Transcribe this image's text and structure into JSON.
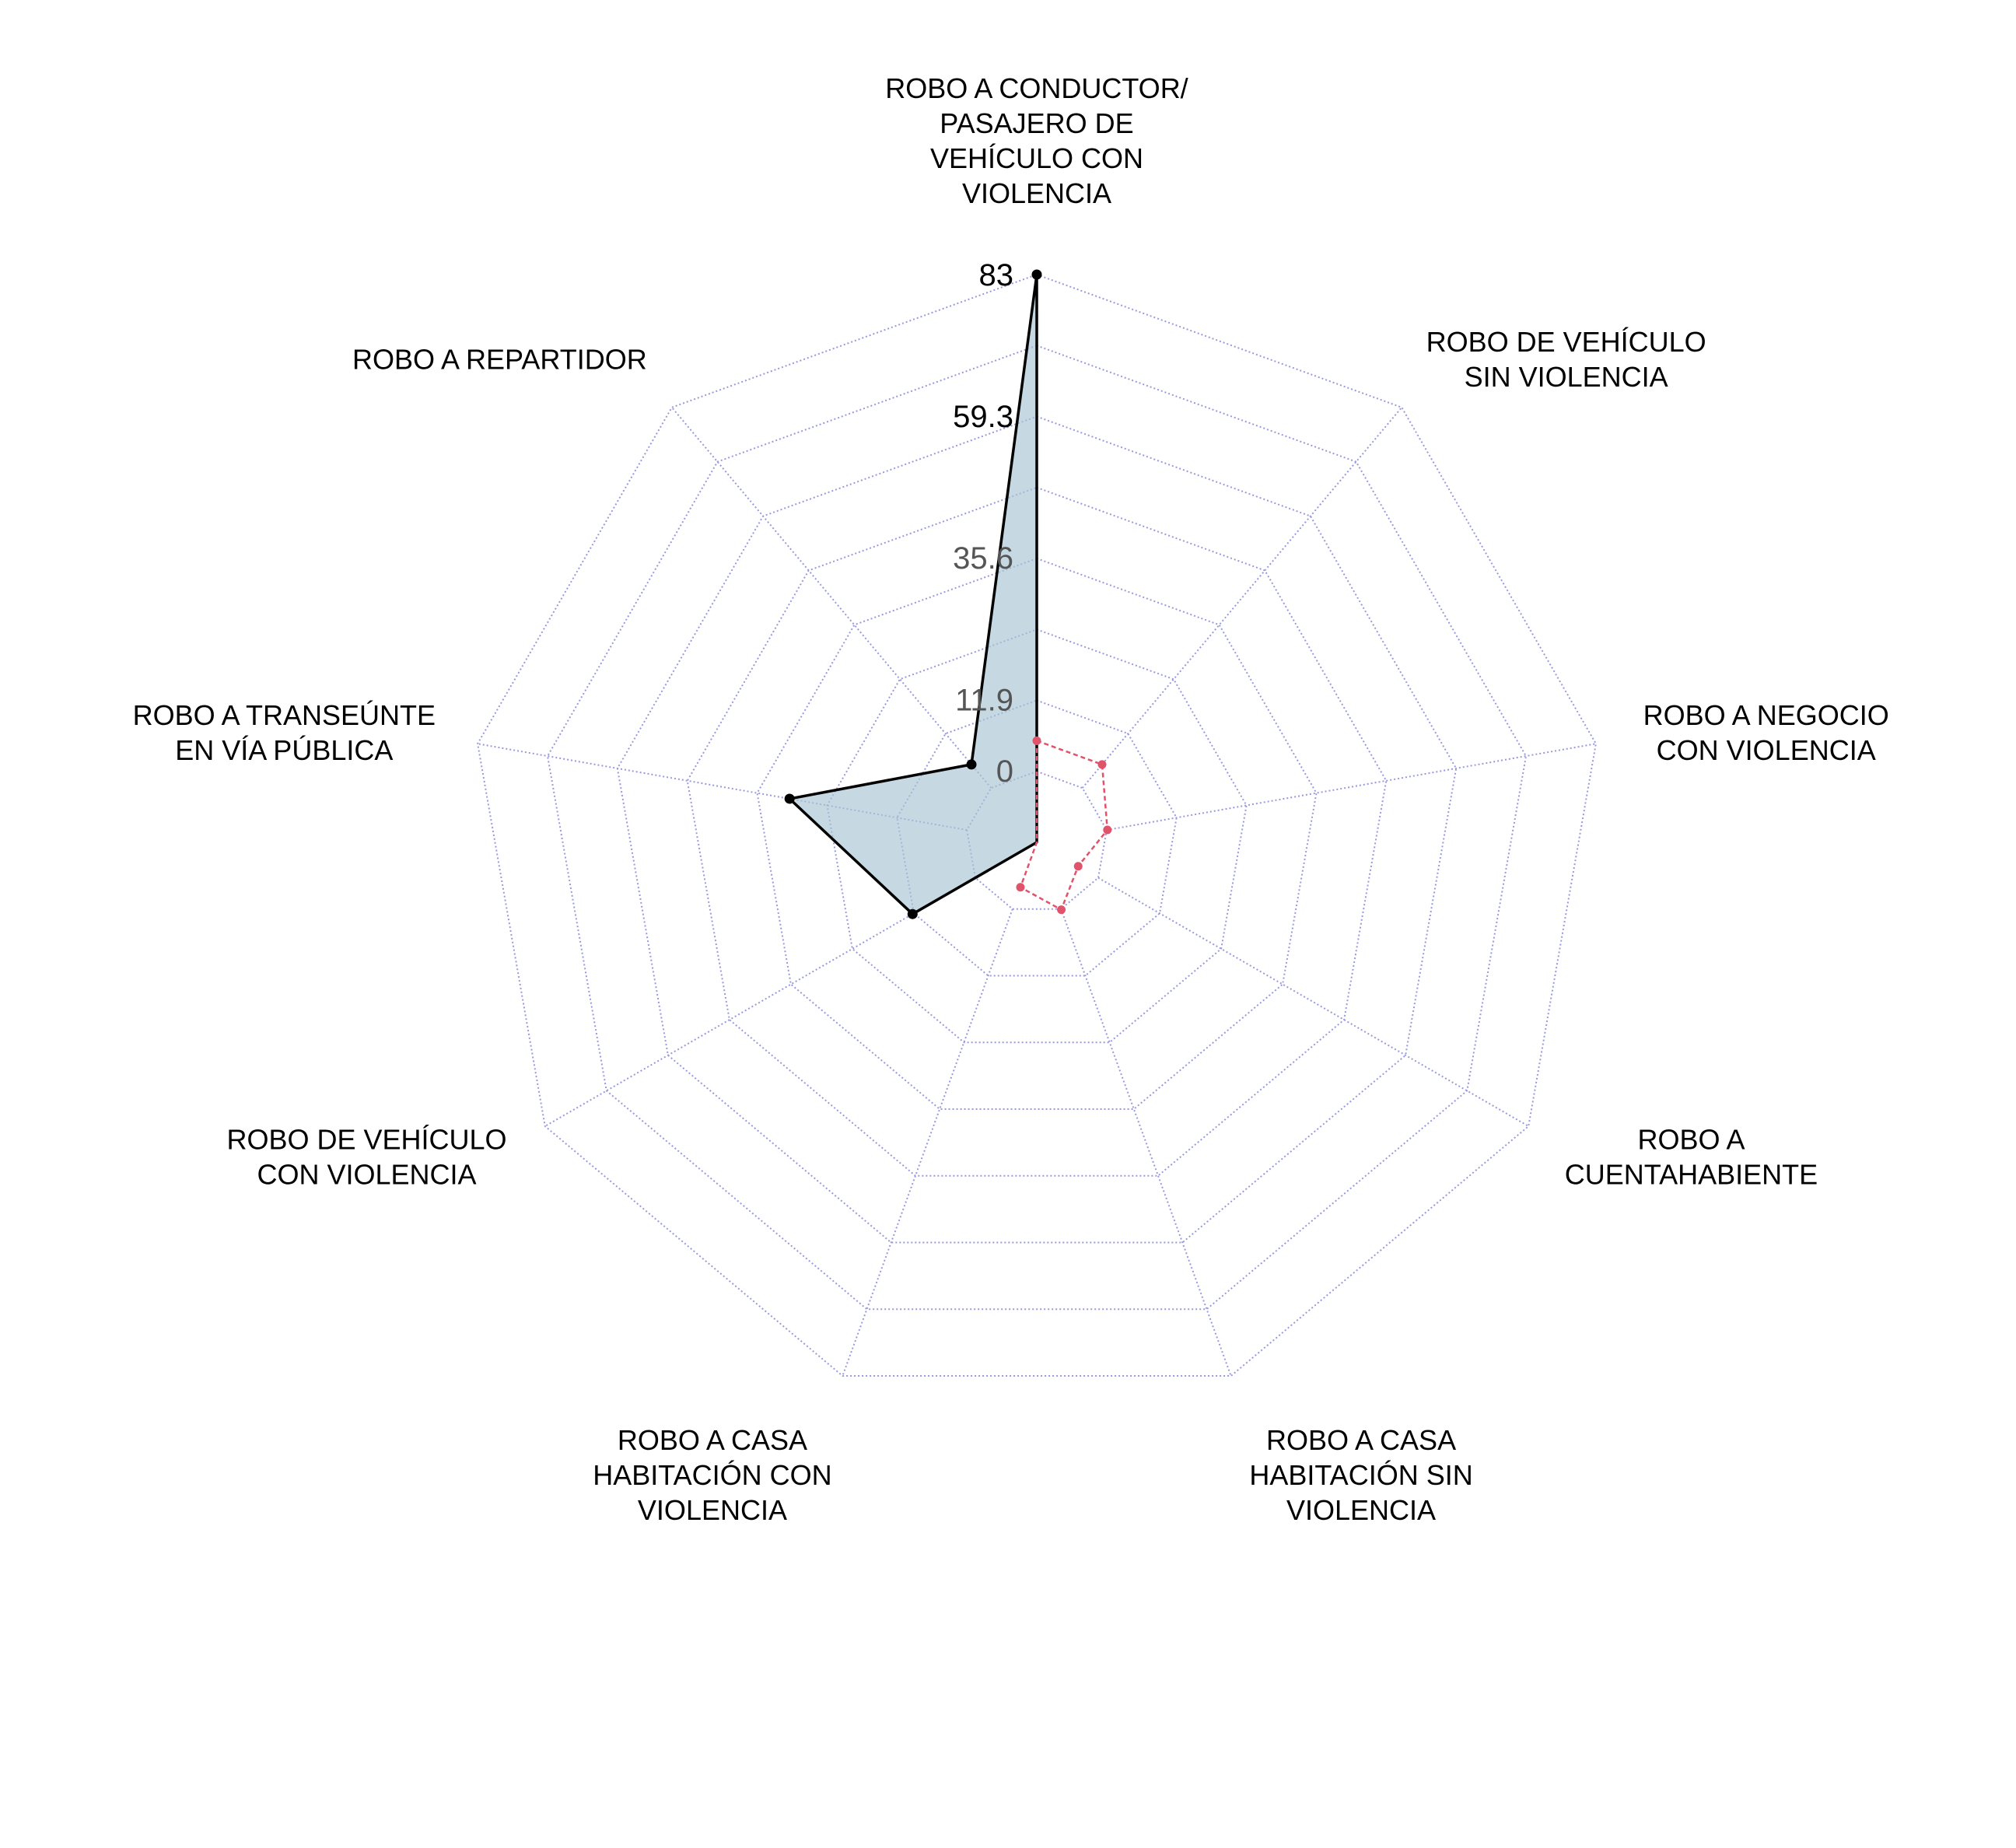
{
  "chart_data": {
    "type": "radar",
    "title": "",
    "axes": [
      "ROBO A CONDUCTOR/\nPASAJERO DE\nVEHÍCULO CON\nVIOLENCIA",
      "ROBO DE VEHÍCULO\nSIN VIOLENCIA",
      "ROBO A NEGOCIO\nCON VIOLENCIA",
      "ROBO A\nCUENTAHABIENTE",
      "ROBO A CASA\nHABITACIÓN SIN\nVIOLENCIA",
      "ROBO A CASA\nHABITACIÓN CON\nVIOLENCIA",
      "ROBO DE VEHÍCULO\nCON VIOLENCIA",
      "ROBO A TRANSEÚNTE\nEN VÍA PÚBLICA",
      "ROBO A REPARTIDOR"
    ],
    "tick_labels": [
      "0",
      "11.9",
      "35.6",
      "59.3",
      "83"
    ],
    "tick_values": [
      0,
      11.9,
      35.6,
      59.3,
      83
    ],
    "range": [
      -12,
      83
    ],
    "grid_rings": 8,
    "series": [
      {
        "values": [
          83,
          -12,
          -12,
          -12,
          -12,
          -12,
          12,
          30,
          5
        ],
        "line_color": "#000000",
        "fill_color": "#a8c5d3",
        "line_style": "solid"
      },
      {
        "values": [
          5,
          5,
          0,
          -4,
          0,
          -4,
          -12,
          -12,
          -12
        ],
        "line_color": "#df536b",
        "fill_color": "none",
        "line_style": "dashed"
      }
    ],
    "grid_color": "#9999dd",
    "legend": "none"
  }
}
